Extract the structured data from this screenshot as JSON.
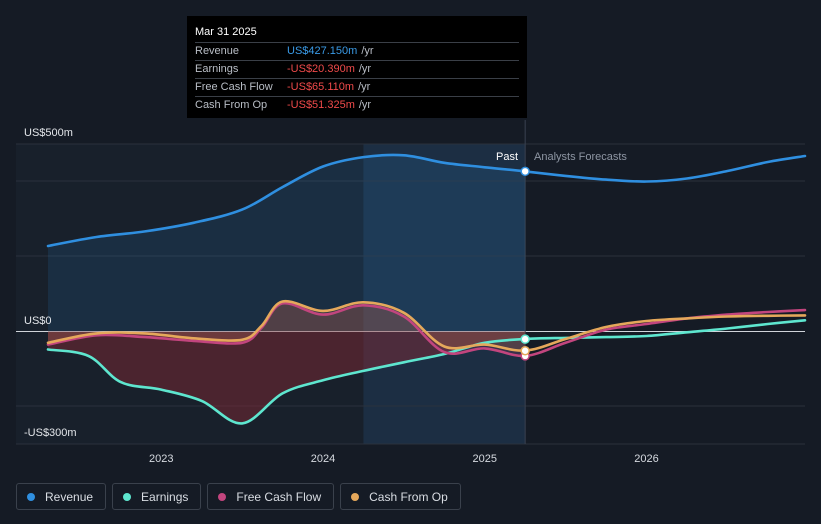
{
  "tooltip": {
    "date": "Mar 31 2025",
    "rows": [
      {
        "name": "Revenue",
        "value": "US$427.150m",
        "unit": "/yr"
      },
      {
        "name": "Earnings",
        "value": "-US$20.390m",
        "unit": "/yr"
      },
      {
        "name": "Free Cash Flow",
        "value": "-US$65.110m",
        "unit": "/yr"
      },
      {
        "name": "Cash From Op",
        "value": "-US$51.325m",
        "unit": "/yr"
      }
    ]
  },
  "legend": [
    {
      "label": "Revenue",
      "color": "#2f8fe0"
    },
    {
      "label": "Earnings",
      "color": "#5ee6cf"
    },
    {
      "label": "Free Cash Flow",
      "color": "#c2457e"
    },
    {
      "label": "Cash From Op",
      "color": "#e5a85b"
    }
  ],
  "chart_data": {
    "type": "line",
    "y_labels": {
      "top": "US$500m",
      "zero": "US$0",
      "bottom": "-US$300m"
    },
    "ylim": [
      -300,
      500
    ],
    "xlim": [
      2022.3,
      2026.98
    ],
    "x_ticks": [
      {
        "value": 2023,
        "label": "2023"
      },
      {
        "value": 2024,
        "label": "2024"
      },
      {
        "value": 2025,
        "label": "2025"
      },
      {
        "value": 2026,
        "label": "2026"
      }
    ],
    "past_label": "Past",
    "forecast_label": "Analysts Forecasts",
    "highlight_start": 2024.25,
    "divider_x": 2025.25,
    "series": [
      {
        "name": "Revenue",
        "color": "#2f8fe0",
        "x": [
          2022.3,
          2022.6,
          2022.9,
          2023.2,
          2023.5,
          2023.75,
          2024.0,
          2024.25,
          2024.5,
          2024.75,
          2025.0,
          2025.25,
          2025.5,
          2025.75,
          2026.0,
          2026.25,
          2026.5,
          2026.75,
          2026.98
        ],
        "values": [
          228,
          252,
          267,
          290,
          325,
          385,
          440,
          465,
          470,
          450,
          438,
          427,
          415,
          405,
          400,
          408,
          428,
          452,
          468
        ]
      },
      {
        "name": "Earnings",
        "color": "#5ee6cf",
        "x": [
          2022.3,
          2022.55,
          2022.75,
          2023.0,
          2023.25,
          2023.5,
          2023.75,
          2024.0,
          2024.25,
          2024.5,
          2024.75,
          2025.0,
          2025.25,
          2025.5,
          2025.75,
          2026.0,
          2026.25,
          2026.5,
          2026.75,
          2026.98
        ],
        "values": [
          -48,
          -65,
          -135,
          -155,
          -185,
          -245,
          -165,
          -130,
          -105,
          -82,
          -60,
          -30,
          -20,
          -17,
          -15,
          -12,
          -2,
          8,
          20,
          30
        ]
      },
      {
        "name": "Free Cash Flow",
        "color": "#c2457e",
        "x": [
          2022.3,
          2022.6,
          2022.9,
          2023.2,
          2023.5,
          2023.62,
          2023.75,
          2024.0,
          2024.25,
          2024.5,
          2024.75,
          2025.0,
          2025.25,
          2025.5,
          2025.75,
          2026.0,
          2026.25,
          2026.5,
          2026.75,
          2026.98
        ],
        "values": [
          -35,
          -10,
          -15,
          -25,
          -30,
          10,
          75,
          45,
          70,
          40,
          -55,
          -45,
          -65,
          -30,
          5,
          20,
          35,
          45,
          52,
          57
        ]
      },
      {
        "name": "Cash From Op",
        "color": "#e5a85b",
        "x": [
          2022.3,
          2022.6,
          2022.9,
          2023.2,
          2023.5,
          2023.62,
          2023.75,
          2024.0,
          2024.25,
          2024.5,
          2024.75,
          2025.0,
          2025.25,
          2025.5,
          2025.75,
          2026.0,
          2026.25,
          2026.5,
          2026.75,
          2026.98
        ],
        "values": [
          -30,
          -5,
          -5,
          -18,
          -22,
          15,
          80,
          55,
          78,
          50,
          -40,
          -35,
          -51,
          -20,
          12,
          28,
          35,
          40,
          42,
          43
        ]
      }
    ]
  }
}
